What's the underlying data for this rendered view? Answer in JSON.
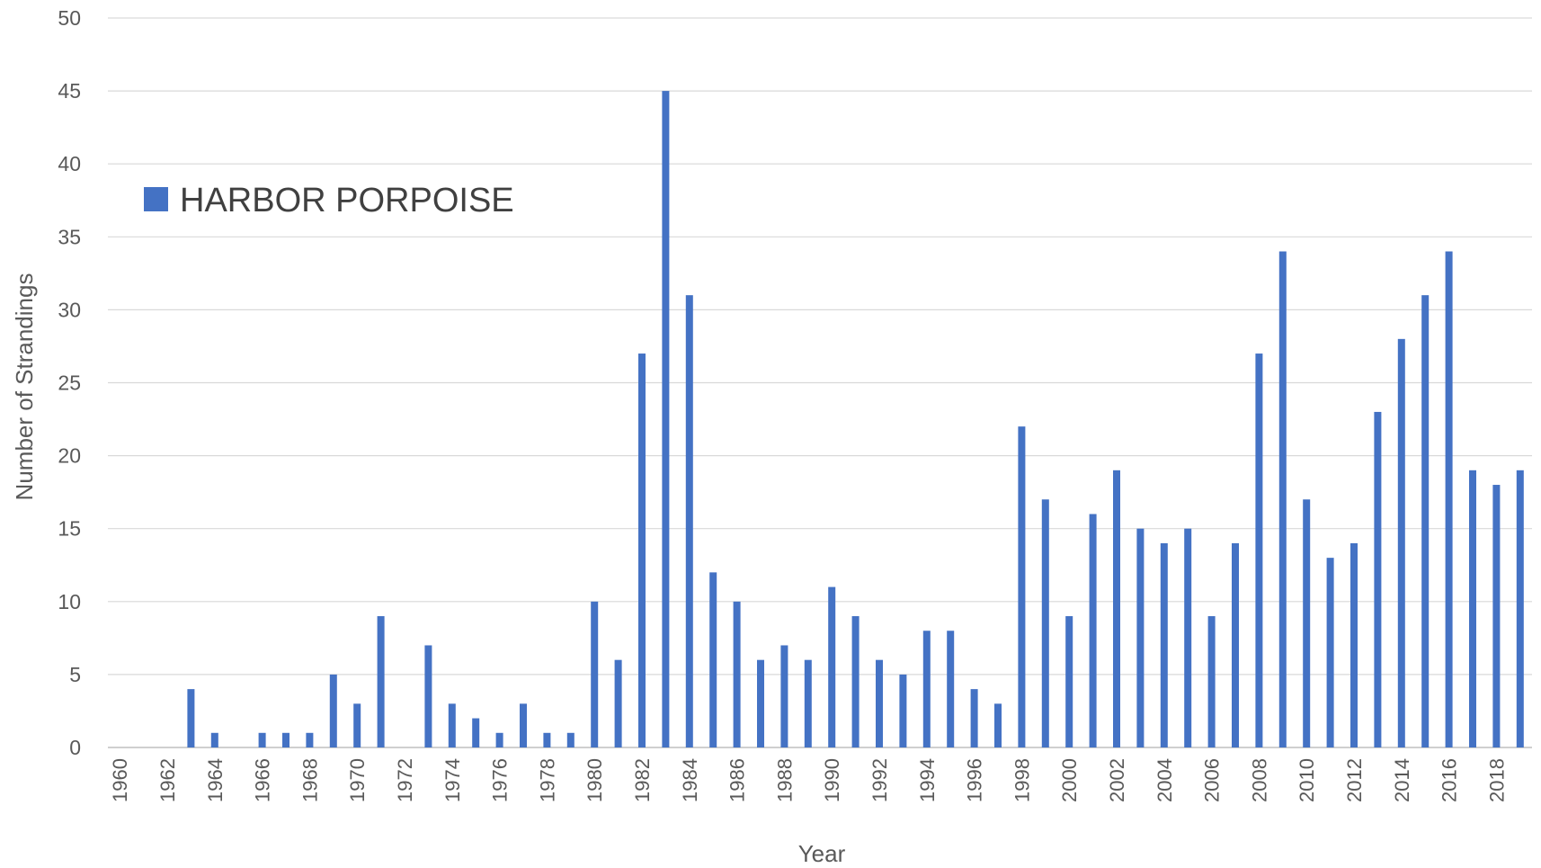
{
  "chart_data": {
    "type": "bar",
    "xlabel": "Year",
    "ylabel": "Number of Strandings",
    "ylim": [
      0,
      50
    ],
    "y_ticks": [
      0,
      5,
      10,
      15,
      20,
      25,
      30,
      35,
      40,
      45,
      50
    ],
    "x_tick_labels": [
      "1960",
      "1962",
      "1964",
      "1966",
      "1968",
      "1970",
      "1972",
      "1974",
      "1976",
      "1978",
      "1980",
      "1982",
      "1984",
      "1986",
      "1988",
      "1990",
      "1992",
      "1994",
      "1996",
      "1998",
      "2000",
      "2002",
      "2004",
      "2006",
      "2008",
      "2010",
      "2012",
      "2014",
      "2016",
      "2018"
    ],
    "grid": true,
    "legend_position": "top-left",
    "series": [
      {
        "name": "HARBOR PORPOISE",
        "color": "#4472c4",
        "x": [
          1960,
          1961,
          1962,
          1963,
          1964,
          1965,
          1966,
          1967,
          1968,
          1969,
          1970,
          1971,
          1972,
          1973,
          1974,
          1975,
          1976,
          1977,
          1978,
          1979,
          1980,
          1981,
          1982,
          1983,
          1984,
          1985,
          1986,
          1987,
          1988,
          1989,
          1990,
          1991,
          1992,
          1993,
          1994,
          1995,
          1996,
          1997,
          1998,
          1999,
          2000,
          2001,
          2002,
          2003,
          2004,
          2005,
          2006,
          2007,
          2008,
          2009,
          2010,
          2011,
          2012,
          2013,
          2014,
          2015,
          2016,
          2017,
          2018,
          2019
        ],
        "values": [
          0,
          0,
          0,
          4,
          1,
          0,
          1,
          1,
          1,
          5,
          3,
          9,
          0,
          7,
          3,
          2,
          1,
          3,
          1,
          1,
          10,
          6,
          27,
          45,
          31,
          12,
          10,
          6,
          7,
          6,
          11,
          9,
          6,
          5,
          8,
          8,
          4,
          3,
          22,
          17,
          9,
          16,
          19,
          15,
          14,
          15,
          9,
          14,
          27,
          34,
          17,
          13,
          14,
          23,
          28,
          31,
          34,
          19,
          18,
          19
        ]
      }
    ]
  }
}
